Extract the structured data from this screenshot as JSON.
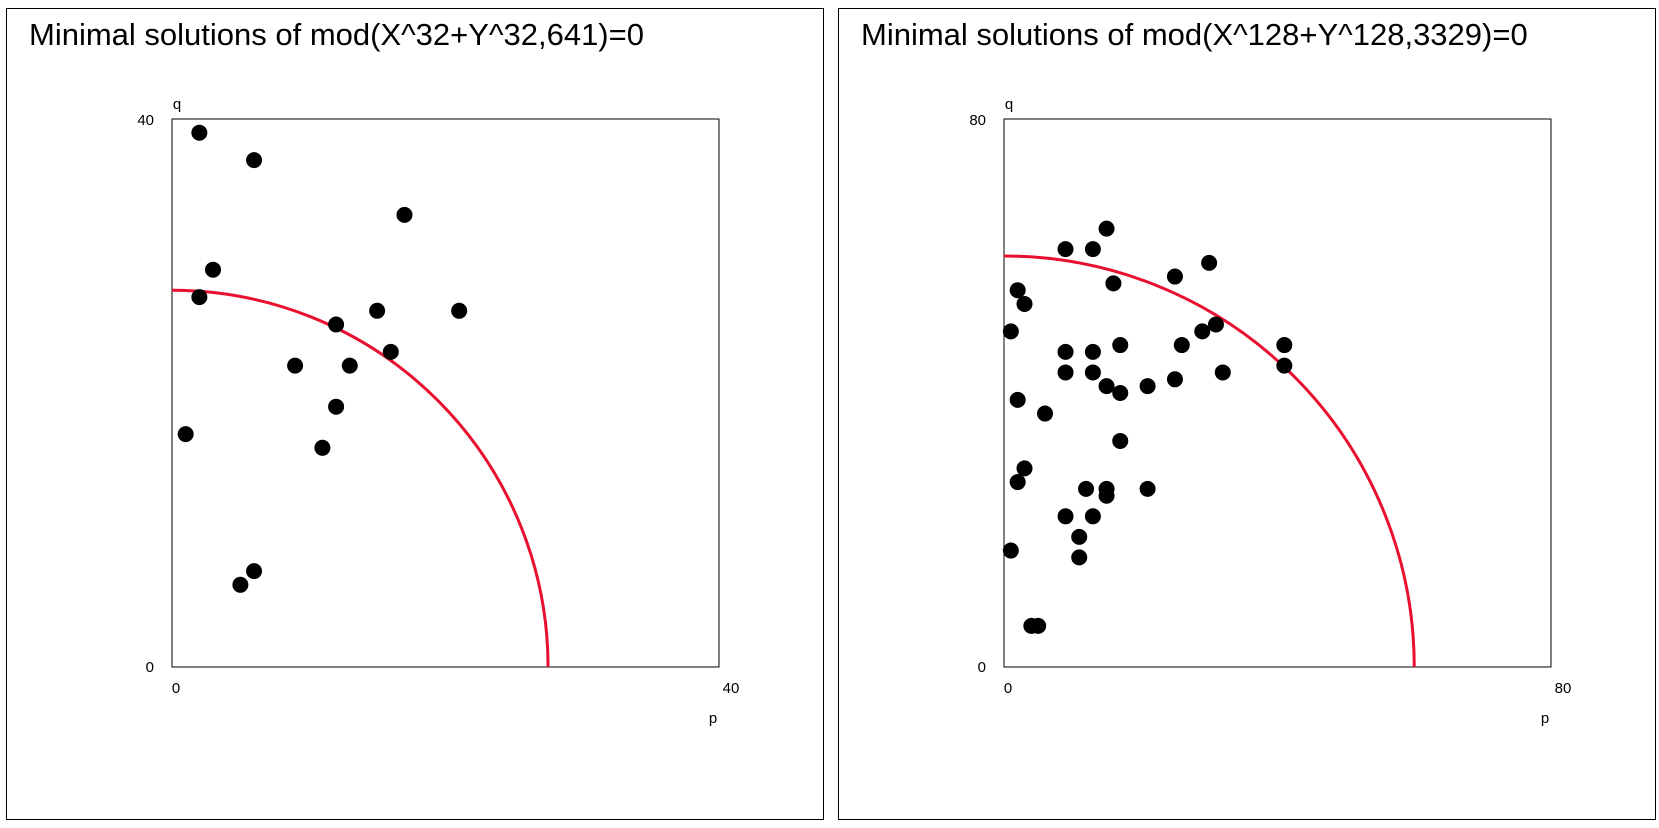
{
  "colors": {
    "curve": "#e8102e",
    "points": "#000000",
    "frame": "#000000",
    "background": "#ffffff"
  },
  "chart_data": [
    {
      "type": "scatter",
      "title": "Minimal solutions of mod(X^32+Y^32,641)=0",
      "xlabel": "p",
      "ylabel": "q",
      "xlim": [
        0,
        40
      ],
      "ylim": [
        0,
        40
      ],
      "x_tick_labels": [
        "0",
        "40"
      ],
      "y_tick_labels": [
        "0",
        "40"
      ],
      "grid": false,
      "curve": {
        "shape": "quarter-circle",
        "radius": 27.5
      },
      "points": [
        [
          2,
          39
        ],
        [
          6,
          37
        ],
        [
          3,
          29
        ],
        [
          2,
          27
        ],
        [
          1,
          17
        ],
        [
          5,
          6
        ],
        [
          6,
          7
        ],
        [
          9,
          22
        ],
        [
          12,
          25
        ],
        [
          13,
          22
        ],
        [
          11,
          16
        ],
        [
          12,
          19
        ],
        [
          15,
          26
        ],
        [
          16,
          23
        ],
        [
          17,
          33
        ],
        [
          21,
          26
        ]
      ]
    },
    {
      "type": "scatter",
      "title": "Minimal solutions of mod(X^128+Y^128,3329)=0",
      "xlabel": "p",
      "ylabel": "q",
      "xlim": [
        0,
        80
      ],
      "ylim": [
        0,
        80
      ],
      "x_tick_labels": [
        "0",
        "80"
      ],
      "y_tick_labels": [
        "0",
        "80"
      ],
      "grid": false,
      "curve": {
        "shape": "quarter-circle",
        "radius": 60
      },
      "points": [
        [
          9,
          61
        ],
        [
          13,
          61
        ],
        [
          15,
          64
        ],
        [
          16,
          56
        ],
        [
          25,
          57
        ],
        [
          30,
          59
        ],
        [
          1,
          49
        ],
        [
          2,
          55
        ],
        [
          3,
          53
        ],
        [
          9,
          46
        ],
        [
          9,
          43
        ],
        [
          13,
          46
        ],
        [
          13,
          43
        ],
        [
          15,
          41
        ],
        [
          17,
          40
        ],
        [
          17,
          47
        ],
        [
          21,
          41
        ],
        [
          25,
          42
        ],
        [
          26,
          47
        ],
        [
          29,
          49
        ],
        [
          31,
          50
        ],
        [
          32,
          43
        ],
        [
          41,
          47
        ],
        [
          41,
          44
        ],
        [
          2,
          39
        ],
        [
          6,
          37
        ],
        [
          17,
          33
        ],
        [
          2,
          27
        ],
        [
          3,
          29
        ],
        [
          1,
          17
        ],
        [
          9,
          22
        ],
        [
          11,
          19
        ],
        [
          12,
          26
        ],
        [
          13,
          22
        ],
        [
          15,
          26
        ],
        [
          15,
          25
        ],
        [
          21,
          26
        ],
        [
          11,
          16
        ],
        [
          5,
          6
        ],
        [
          4,
          6
        ]
      ]
    }
  ]
}
